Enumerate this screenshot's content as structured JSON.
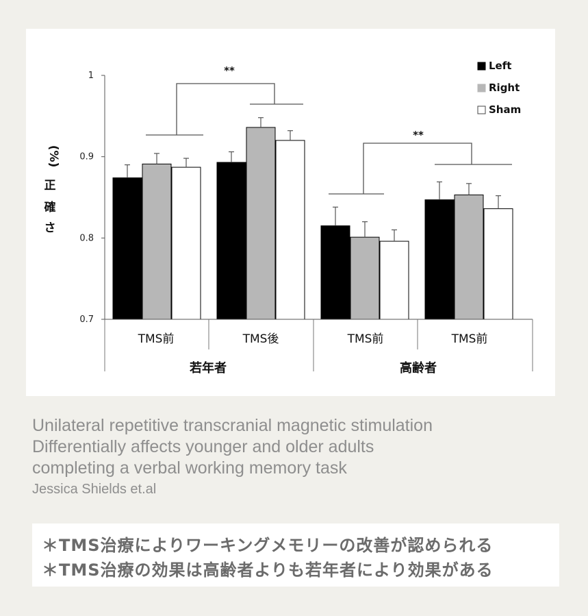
{
  "chart_data": {
    "type": "bar",
    "ylabel_chars": [
      "(%)",
      "正",
      "確",
      "さ"
    ],
    "ylim": [
      0.7,
      1.0
    ],
    "yticks": [
      0.7,
      0.8,
      0.9,
      1
    ],
    "ytick_labels": [
      "0.7",
      "0.8",
      "0.9",
      "1"
    ],
    "categories": [
      "TMS前",
      "TMS後",
      "TMS前",
      "TMS前"
    ],
    "groups": [
      {
        "label": "若年者",
        "category_indices": [
          0,
          1
        ]
      },
      {
        "label": "高齢者",
        "category_indices": [
          2,
          3
        ]
      }
    ],
    "series": [
      {
        "name": "Left",
        "color": "#000000",
        "values": [
          0.874,
          0.893,
          0.815,
          0.847
        ],
        "errors": [
          0.016,
          0.013,
          0.023,
          0.022
        ]
      },
      {
        "name": "Right",
        "color": "#b7b7b7",
        "values": [
          0.891,
          0.936,
          0.801,
          0.853
        ],
        "errors": [
          0.013,
          0.012,
          0.019,
          0.014
        ]
      },
      {
        "name": "Sham",
        "color": "#ffffff",
        "values": [
          0.887,
          0.92,
          0.796,
          0.836
        ],
        "errors": [
          0.011,
          0.012,
          0.014,
          0.016
        ]
      }
    ],
    "significance": [
      {
        "label": "**",
        "between_categories": [
          0,
          1
        ],
        "bracket_y": 0.99
      },
      {
        "label": "**",
        "between_categories": [
          2,
          3
        ],
        "bracket_y": 0.918
      }
    ],
    "legend_position": "top-right",
    "grid": false
  },
  "caption": {
    "lines": [
      "Unilateral repetitive transcranial magnetic stimulation",
      "Differentially affects younger and older adults",
      "completing a verbal working memory task"
    ],
    "author": "Jessica Shields et.al"
  },
  "notes": [
    "＊TMS治療によりワーキングメモリーの改善が認められる",
    "＊TMS治療の効果は高齢者よりも若年者により効果がある"
  ]
}
